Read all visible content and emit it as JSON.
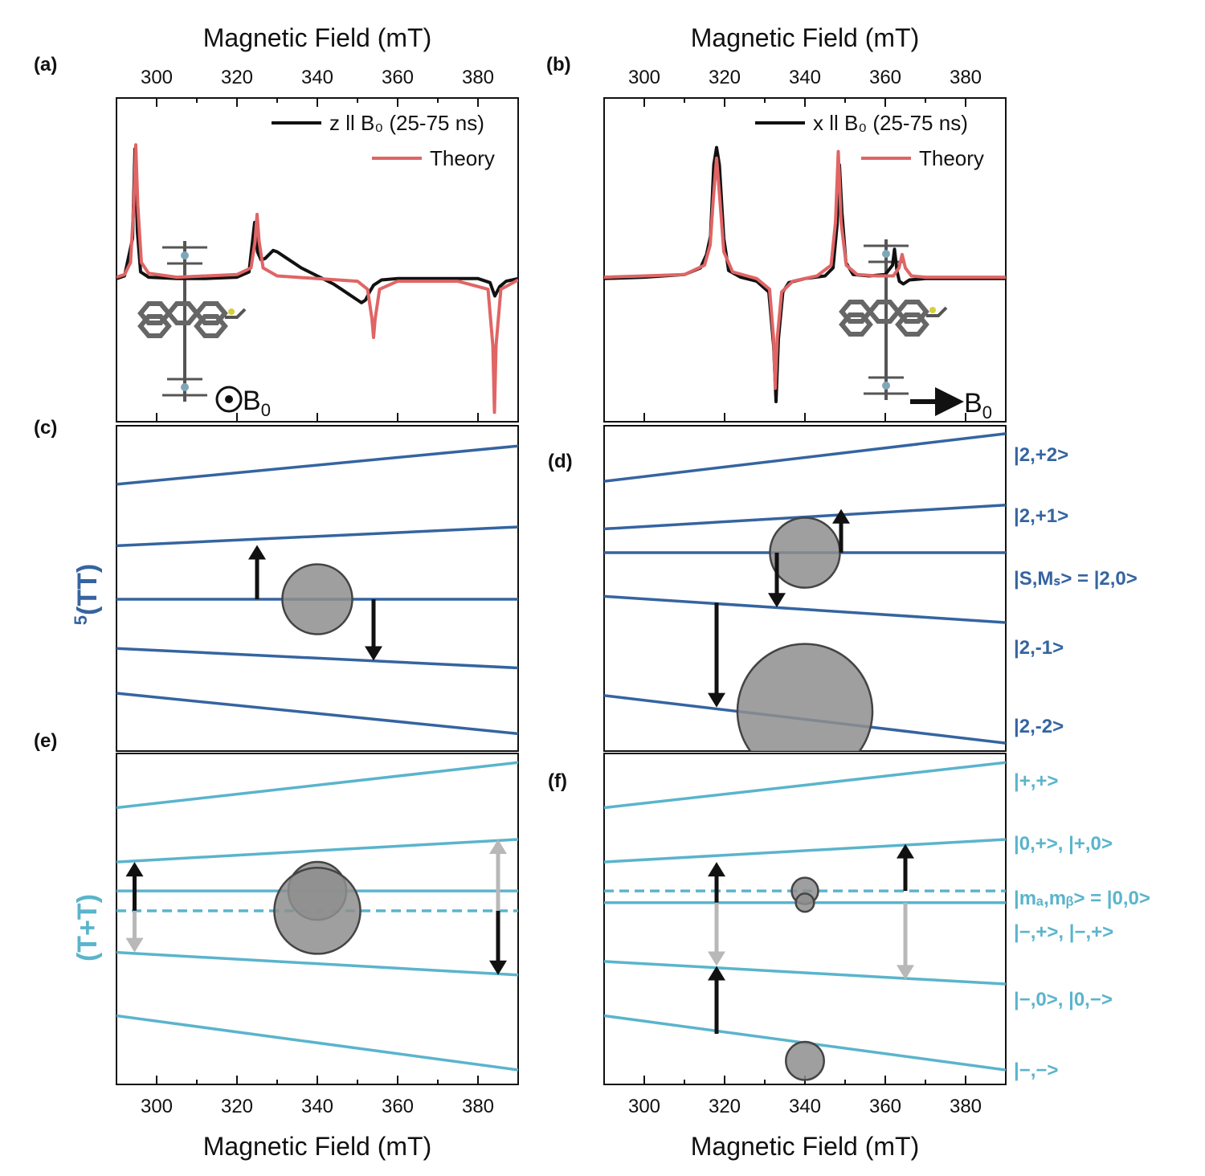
{
  "colors": {
    "tt_blue": "#3564a0",
    "tplus_cyan": "#5ab4cc",
    "theory_red": "#e06565",
    "exp_black": "#111111",
    "gray_arrow": "#b8b8b8",
    "circle_fill": "#8e8e8e"
  },
  "axis_titles": {
    "top_left": "Magnetic Field (mT)",
    "top_right": "Magnetic Field (mT)",
    "bottom_left": "Magnetic Field (mT)",
    "bottom_right": "Magnetic Field (mT)"
  },
  "panel_labels": {
    "a": "(a)",
    "b": "(b)",
    "c": "(c)",
    "d": "(d)",
    "e": "(e)",
    "f": "(f)"
  },
  "side_labels": {
    "tt_sup": "5",
    "tt": "(TT)",
    "tplus": "(T+T)"
  },
  "inset": {
    "field_a": "B",
    "field_b": "B",
    "sub": "0",
    "molecule_icon": "molecule-icon"
  },
  "legend": {
    "a": {
      "exp": "z ll B₀ (25-75 ns)",
      "theory": "Theory"
    },
    "b": {
      "exp": "x ll B₀ (25-75 ns)",
      "theory": "Theory"
    }
  },
  "state_labels_d": [
    "|2,+2>",
    "|2,+1>",
    "|S,Mₛ> = |2,0>",
    "|2,-1>",
    "|2,-2>"
  ],
  "state_labels_f": [
    "|+,+>",
    "|0,+>, |+,0>",
    "|mₐ,mᵦ> = |0,0>",
    "|−,+>, |−,+>",
    "|−,0>, |0,−>",
    "|−,−>"
  ],
  "chart_data": [
    {
      "panel": "a",
      "type": "line",
      "title": "",
      "xlabel": "Magnetic Field (mT)",
      "xlim": [
        290,
        390
      ],
      "xticks": [
        300,
        320,
        340,
        360,
        380
      ],
      "series": [
        {
          "name": "z ll B₀ (25-75 ns)",
          "role": "experiment",
          "x": [
            290,
            292,
            294,
            294.6,
            295.2,
            296,
            298,
            305,
            312,
            320,
            323,
            324.4,
            325.1,
            326,
            327,
            328,
            329,
            330,
            332,
            334,
            336,
            338,
            340,
            342,
            344,
            346,
            348,
            350,
            351,
            352,
            353,
            354,
            356,
            360,
            370,
            380,
            383,
            384.2,
            385.4,
            387,
            390
          ],
          "y": [
            0,
            0.02,
            0.3,
            0.97,
            0.35,
            0.05,
            0.01,
            0,
            0,
            0.01,
            0.05,
            0.42,
            0.2,
            0.14,
            0.15,
            0.18,
            0.21,
            0.2,
            0.16,
            0.12,
            0.08,
            0.05,
            0.02,
            -0.01,
            -0.04,
            -0.08,
            -0.12,
            -0.16,
            -0.18,
            -0.16,
            -0.1,
            -0.05,
            -0.01,
            0,
            0,
            0,
            -0.03,
            -0.13,
            -0.06,
            -0.02,
            0
          ]
        },
        {
          "name": "Theory",
          "role": "theory",
          "x": [
            290,
            292,
            293.5,
            294.3,
            294.8,
            295.3,
            296.2,
            298,
            305,
            320,
            323.5,
            324.5,
            325,
            325.5,
            326.5,
            330,
            340,
            350,
            352.5,
            353.6,
            354,
            354.4,
            355.5,
            360,
            375,
            382.5,
            383.7,
            384.1,
            384.5,
            385.7,
            390
          ],
          "y": [
            0.01,
            0.03,
            0.12,
            0.55,
            1.0,
            0.55,
            0.12,
            0.04,
            0.01,
            0.03,
            0.08,
            0.28,
            0.48,
            0.28,
            0.08,
            0.02,
            0,
            -0.02,
            -0.08,
            -0.3,
            -0.44,
            -0.3,
            -0.08,
            -0.02,
            -0.02,
            -0.08,
            -0.5,
            -1.0,
            -0.5,
            -0.08,
            -0.01
          ]
        }
      ]
    },
    {
      "panel": "b",
      "type": "line",
      "title": "",
      "xlabel": "Magnetic Field (mT)",
      "xlim": [
        290,
        390
      ],
      "xticks": [
        300,
        320,
        340,
        360,
        380
      ],
      "series": [
        {
          "name": "x ll B₀ (25-75 ns)",
          "role": "experiment",
          "x": [
            290,
            300,
            310,
            314,
            315.5,
            316.5,
            317.3,
            318,
            318.7,
            319.8,
            321,
            324,
            328,
            331,
            332.2,
            332.8,
            333.4,
            334.5,
            336,
            340,
            345,
            347,
            348,
            348.6,
            349.2,
            350.2,
            352,
            356,
            360,
            361.8,
            362.3,
            362.9,
            363.5,
            364.5,
            366,
            370,
            380,
            390
          ],
          "y": [
            0,
            0.01,
            0.03,
            0.08,
            0.18,
            0.32,
            0.85,
            0.98,
            0.85,
            0.3,
            0.06,
            0.01,
            -0.02,
            -0.1,
            -0.5,
            -0.92,
            -0.45,
            -0.1,
            -0.03,
            0,
            0.02,
            0.08,
            0.4,
            0.85,
            0.5,
            0.12,
            0.03,
            0.02,
            0.03,
            0.1,
            0.22,
            0.06,
            -0.02,
            -0.04,
            -0.01,
            0,
            0,
            0
          ]
        },
        {
          "name": "Theory",
          "role": "theory",
          "x": [
            290,
            300,
            310,
            315,
            316.4,
            317.2,
            318,
            318.8,
            319.8,
            322,
            328,
            331.2,
            332.2,
            332.6,
            333.1,
            334.2,
            337,
            343,
            346.5,
            347.6,
            348.3,
            349,
            350.3,
            353,
            358,
            362,
            363.4,
            364.2,
            365,
            366.5,
            370,
            390
          ],
          "y": [
            0.01,
            0.02,
            0.03,
            0.1,
            0.25,
            0.6,
            0.9,
            0.6,
            0.2,
            0.05,
            0,
            -0.08,
            -0.45,
            -0.82,
            -0.45,
            -0.1,
            -0.02,
            0.02,
            0.1,
            0.42,
            0.95,
            0.42,
            0.1,
            0.03,
            0.02,
            0.02,
            0.08,
            0.18,
            0.08,
            0.02,
            0.01,
            0.01
          ]
        }
      ]
    },
    {
      "panel": "c",
      "type": "line",
      "title": "",
      "xlim": [
        290,
        390
      ],
      "series": [
        {
          "name": "|2,+2>",
          "x": [
            290,
            390
          ],
          "y": [
            2.09,
            2.62
          ]
        },
        {
          "name": "|2,+1>",
          "x": [
            290,
            390
          ],
          "y": [
            1.24,
            1.5
          ]
        },
        {
          "name": "|2,0>",
          "x": [
            290,
            390
          ],
          "y": [
            0.5,
            0.5
          ]
        },
        {
          "name": "|2,-1>",
          "x": [
            290,
            390
          ],
          "y": [
            -0.18,
            -0.45
          ]
        },
        {
          "name": "|2,-2>",
          "x": [
            290,
            390
          ],
          "y": [
            -0.8,
            -1.36
          ]
        }
      ],
      "transitions": [
        {
          "x": 325,
          "from": 0.5,
          "to": 1.25,
          "color": "black"
        },
        {
          "x": 354,
          "from": 0.5,
          "to": -0.35,
          "color": "black"
        }
      ],
      "populations": [
        {
          "x": 340,
          "y": 0.5,
          "size": 0.43
        }
      ]
    },
    {
      "panel": "d",
      "type": "line",
      "title": "",
      "xlim": [
        290,
        390
      ],
      "series": [
        {
          "name": "|2,+2>",
          "x": [
            290,
            390
          ],
          "y": [
            2.4,
            3.0
          ]
        },
        {
          "name": "|2,+1>",
          "x": [
            290,
            390
          ],
          "y": [
            1.8,
            2.1
          ]
        },
        {
          "name": "|2,0>",
          "x": [
            290,
            390
          ],
          "y": [
            1.5,
            1.5
          ]
        },
        {
          "name": "|2,-1>",
          "x": [
            290,
            390
          ],
          "y": [
            0.95,
            0.62
          ]
        },
        {
          "name": "|2,-2>",
          "x": [
            290,
            390
          ],
          "y": [
            -0.3,
            -0.9
          ]
        }
      ],
      "transitions": [
        {
          "x": 349,
          "from": 1.5,
          "to": 2.05,
          "color": "black"
        },
        {
          "x": 333,
          "from": 1.5,
          "to": 0.81,
          "color": "black"
        },
        {
          "x": 318,
          "from": 0.87,
          "to": -0.45,
          "color": "black"
        }
      ],
      "populations": [
        {
          "x": 340,
          "y": 1.5,
          "size": 0.43
        },
        {
          "x": 340,
          "y": -0.5,
          "size": 0.83
        }
      ]
    },
    {
      "panel": "e",
      "type": "line",
      "title": "",
      "xlim": [
        290,
        390
      ],
      "series": [
        {
          "name": "|+,+>",
          "x": [
            290,
            390
          ],
          "y": [
            3.2,
            3.7
          ]
        },
        {
          "name": "|0,+>, |+,0>",
          "x": [
            290,
            390
          ],
          "y": [
            2.6,
            2.85
          ]
        },
        {
          "name": "|-,+>, |-,+>",
          "x": [
            290,
            390
          ],
          "y": [
            2.28,
            2.28
          ]
        },
        {
          "name": "|0,0> (dashed)",
          "x": [
            290,
            390
          ],
          "y": [
            2.06,
            2.06
          ]
        },
        {
          "name": "|-,0>, |0,->",
          "x": [
            290,
            390
          ],
          "y": [
            1.6,
            1.35
          ]
        },
        {
          "name": "|-,->",
          "x": [
            290,
            390
          ],
          "y": [
            0.9,
            0.3
          ]
        }
      ],
      "transitions": [
        {
          "x": 294.5,
          "from": 2.06,
          "to": 2.6,
          "color": "black"
        },
        {
          "x": 294.5,
          "from": 2.06,
          "to": 1.6,
          "color": "gray"
        },
        {
          "x": 385,
          "from": 2.06,
          "to": 2.85,
          "color": "gray"
        },
        {
          "x": 385,
          "from": 2.06,
          "to": 1.35,
          "color": "black"
        }
      ],
      "populations": [
        {
          "x": 340,
          "y": 2.28,
          "size": 0.35
        },
        {
          "x": 340,
          "y": 2.06,
          "size": 0.52
        }
      ]
    },
    {
      "panel": "f",
      "type": "line",
      "title": "",
      "xlim": [
        290,
        390
      ],
      "series": [
        {
          "name": "|+,+>",
          "x": [
            290,
            390
          ],
          "y": [
            3.2,
            3.7
          ]
        },
        {
          "name": "|0,+>, |+,0>",
          "x": [
            290,
            390
          ],
          "y": [
            2.6,
            2.85
          ]
        },
        {
          "name": "|0,0> (dashed)",
          "x": [
            290,
            390
          ],
          "y": [
            2.28,
            2.28
          ]
        },
        {
          "name": "|-,+>, |-,+>",
          "x": [
            290,
            390
          ],
          "y": [
            2.15,
            2.15
          ]
        },
        {
          "name": "|-,0>, |0,->",
          "x": [
            290,
            390
          ],
          "y": [
            1.5,
            1.25
          ]
        },
        {
          "name": "|-,->",
          "x": [
            290,
            390
          ],
          "y": [
            0.9,
            0.3
          ]
        }
      ],
      "transitions": [
        {
          "x": 318,
          "from": 2.15,
          "to": 2.6,
          "color": "black"
        },
        {
          "x": 318,
          "from": 2.15,
          "to": 1.45,
          "color": "gray"
        },
        {
          "x": 318,
          "from": 0.7,
          "to": 1.45,
          "color": "black"
        },
        {
          "x": 365,
          "from": 2.28,
          "to": 2.8,
          "color": "black"
        },
        {
          "x": 365,
          "from": 2.15,
          "to": 1.3,
          "color": "gray"
        }
      ],
      "populations": [
        {
          "x": 340,
          "y": 2.28,
          "size": 0.16
        },
        {
          "x": 340,
          "y": 2.15,
          "size": 0.11
        },
        {
          "x": 340,
          "y": 0.4,
          "size": 0.23
        }
      ]
    }
  ]
}
